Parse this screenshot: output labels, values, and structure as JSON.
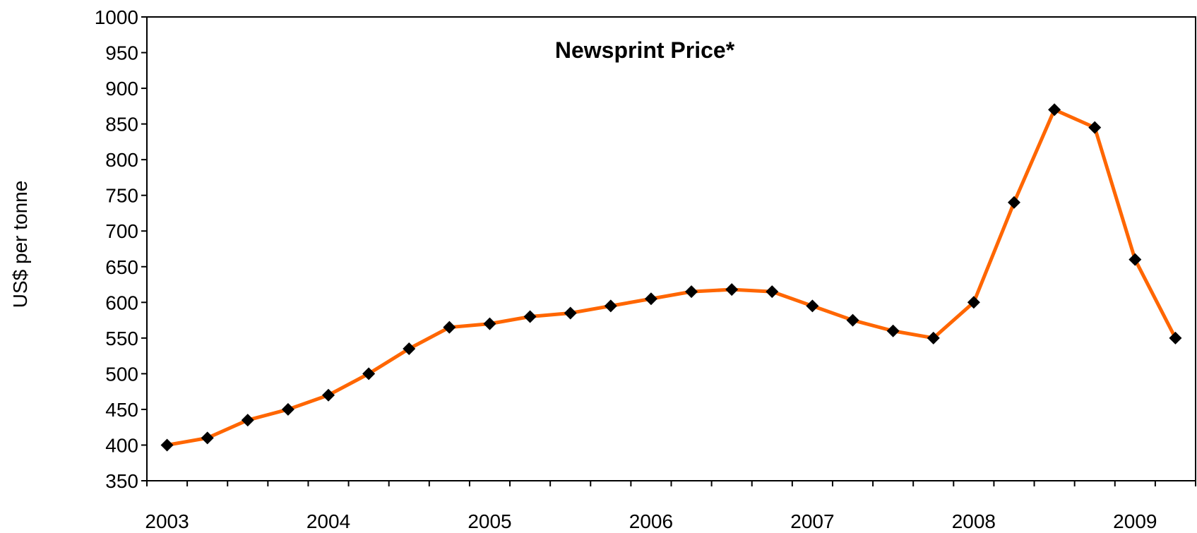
{
  "chart_data": {
    "type": "line",
    "title": "Newsprint Price*",
    "y_label": "US$ per tonne",
    "categories": [
      "2003",
      null,
      null,
      null,
      "2004",
      null,
      null,
      null,
      "2005",
      null,
      null,
      null,
      "2006",
      null,
      null,
      null,
      "2007",
      null,
      null,
      null,
      "2008",
      null,
      null,
      null,
      "2009",
      null
    ],
    "series": [
      {
        "name": "Newsprint Price",
        "color": "#ff6600",
        "marker_color": "#000000",
        "values": [
          400,
          410,
          435,
          450,
          470,
          500,
          535,
          565,
          570,
          580,
          585,
          595,
          605,
          615,
          618,
          615,
          595,
          575,
          560,
          550,
          600,
          740,
          870,
          845,
          660,
          550
        ]
      }
    ],
    "ylim": [
      350,
      1000
    ],
    "yticks": [
      350,
      400,
      450,
      500,
      550,
      600,
      650,
      700,
      750,
      800,
      850,
      900,
      950,
      1000
    ],
    "grid": false
  }
}
